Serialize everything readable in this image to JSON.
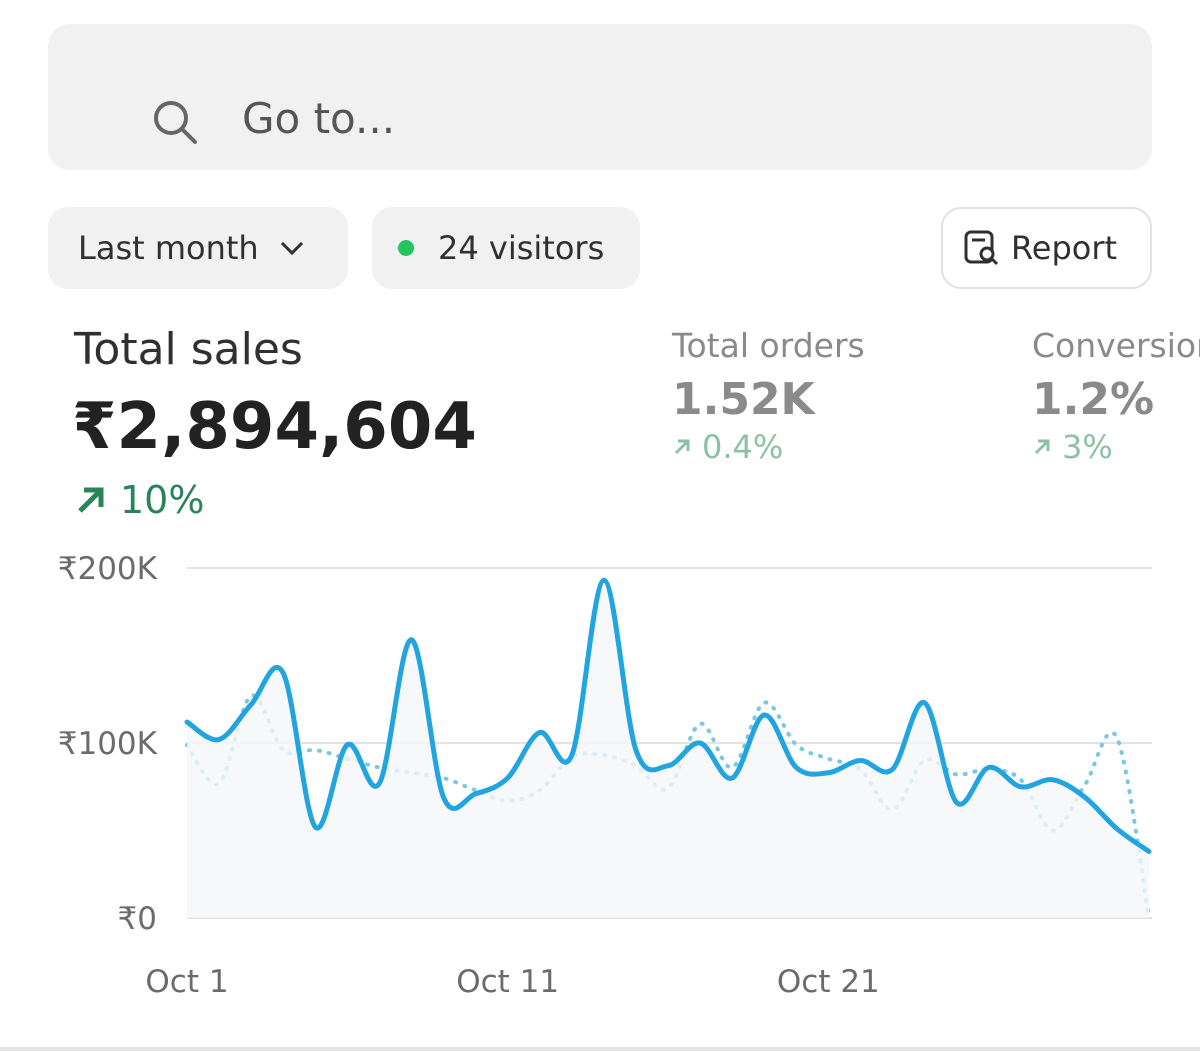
{
  "search": {
    "placeholder": "Go to..."
  },
  "filters": {
    "period": "Last month",
    "visitors": "24 visitors",
    "report": "Report"
  },
  "metrics": [
    {
      "label": "Total sales",
      "value": "₹2,894,604",
      "change": "10%"
    },
    {
      "label": "Total orders",
      "value": "1.52K",
      "change": "0.4%"
    },
    {
      "label": "Conversion rate",
      "value": "1.2%",
      "change": "3%"
    }
  ],
  "chart_data": {
    "type": "line",
    "x": [
      1,
      2,
      3,
      4,
      5,
      6,
      7,
      8,
      9,
      10,
      11,
      12,
      13,
      14,
      15,
      16,
      17,
      18,
      19,
      20,
      21,
      22,
      23,
      24,
      25,
      26,
      27,
      28,
      29,
      30,
      31
    ],
    "series": [
      {
        "color": "#21a4df",
        "style": "solid",
        "values": [
          112,
          102,
          122,
          140,
          52,
          99,
          77,
          159,
          69,
          71,
          80,
          106,
          93,
          193,
          96,
          87,
          100,
          80,
          116,
          86,
          83,
          90,
          85,
          123,
          66,
          86,
          75,
          79,
          69,
          51,
          38
        ]
      },
      {
        "color": "#7cc6e6",
        "style": "dotted",
        "values": [
          99,
          77,
          127,
          96,
          96,
          91,
          86,
          83,
          80,
          73,
          67,
          73,
          92,
          93,
          87,
          74,
          111,
          86,
          123,
          99,
          91,
          85,
          62,
          90,
          82,
          85,
          79,
          50,
          76,
          103,
          0
        ]
      }
    ],
    "xlim": [
      1,
      31
    ],
    "xticks": [
      {
        "value": 1,
        "label": "Oct 1"
      },
      {
        "value": 11,
        "label": "Oct 11"
      },
      {
        "value": 21,
        "label": "Oct 21"
      }
    ],
    "ylim": [
      0,
      200
    ],
    "yticks": [
      {
        "value": 0,
        "label": "₹0"
      },
      {
        "value": 100,
        "label": "₹100K"
      },
      {
        "value": 200,
        "label": "₹200K"
      }
    ],
    "grid": true
  }
}
